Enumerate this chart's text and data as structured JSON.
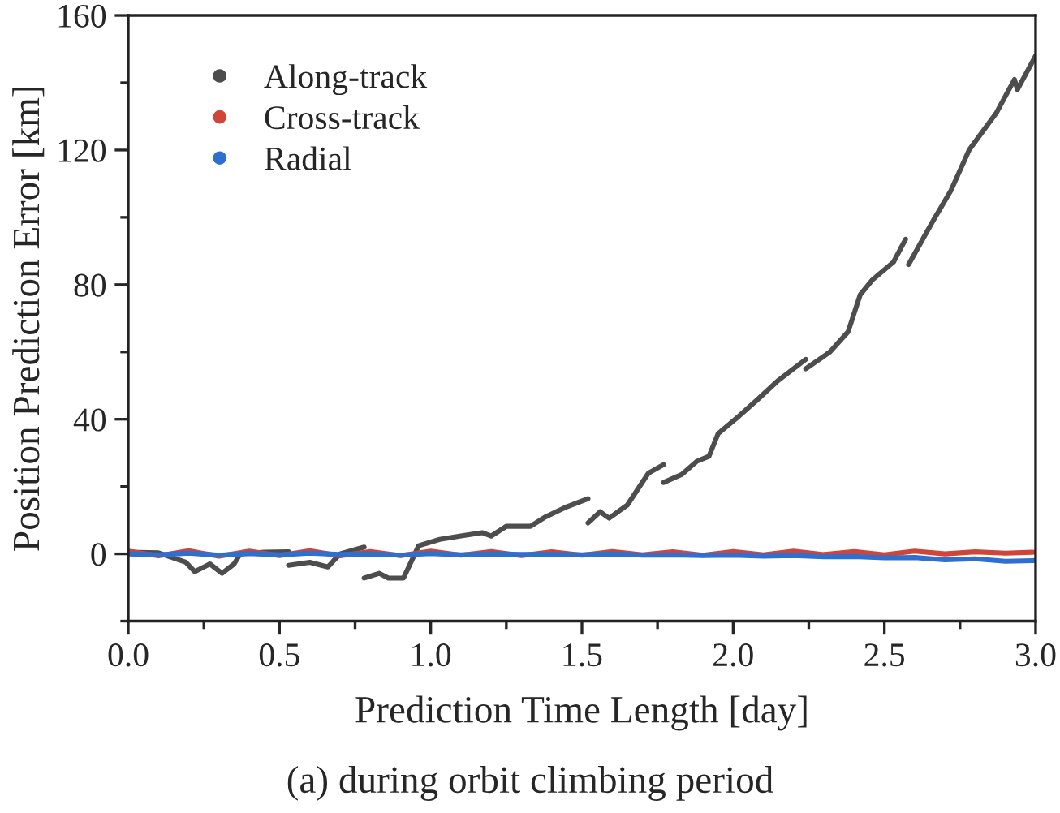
{
  "chart_data": {
    "type": "line",
    "xlabel": "Prediction Time Length [day]",
    "ylabel": "Position Prediction Error [km]",
    "annotations": [
      "(a) during orbit climbing period"
    ],
    "xlim": [
      0,
      3
    ],
    "xticks": [
      {
        "value": 0,
        "label": "0.0"
      },
      {
        "value": 0.25,
        "label": null
      },
      {
        "value": 0.5,
        "label": "0.5"
      },
      {
        "value": 0.75,
        "label": null
      },
      {
        "value": 1,
        "label": "1.0"
      },
      {
        "value": 1.25,
        "label": null
      },
      {
        "value": 1.5,
        "label": "1.5"
      },
      {
        "value": 1.75,
        "label": null
      },
      {
        "value": 2,
        "label": "2.0"
      },
      {
        "value": 2.25,
        "label": null
      },
      {
        "value": 2.5,
        "label": "2.5"
      },
      {
        "value": 2.75,
        "label": null
      },
      {
        "value": 3,
        "label": "3.0"
      }
    ],
    "ylim": [
      -20,
      160
    ],
    "yticks": [
      {
        "value": -20,
        "label": null
      },
      0,
      {
        "value": 20,
        "label": null
      },
      40,
      {
        "value": 60,
        "label": null
      },
      80,
      {
        "value": 100,
        "label": null
      },
      120,
      {
        "value": 140,
        "label": null
      },
      160
    ],
    "legend": "top left",
    "marker": "none",
    "line_style": "solid",
    "grid": false,
    "series": [
      {
        "name": "Along-track",
        "color": "#4d4d4d",
        "x": [
          0,
          0.1,
          0.19,
          0.22,
          0.27,
          0.31,
          0.35,
          0.37,
          0.45,
          0.53
        ],
        "values": [
          0.5,
          0.3,
          -2.5,
          -5.3,
          -3,
          -5.8,
          -3,
          0,
          0.5,
          0.6
        ]
      },
      {
        "color": "#4d4d4d",
        "x": [
          0.53,
          0.6,
          0.66,
          0.7,
          0.78
        ],
        "values": [
          -3.4,
          -2.5,
          -3.9,
          0,
          2
        ]
      },
      {
        "color": "#4d4d4d",
        "x": [
          0.78,
          0.83,
          0.86,
          0.91,
          0.96,
          1.03,
          1.1,
          1.17,
          1.2,
          1.25,
          1.33,
          1.38,
          1.45,
          1.52
        ],
        "values": [
          -7.2,
          -5.8,
          -7.2,
          -7.2,
          2.4,
          4.3,
          5.3,
          6.3,
          5.3,
          8.2,
          8.2,
          11,
          14,
          16.4
        ]
      },
      {
        "color": "#4d4d4d",
        "x": [
          1.52,
          1.56,
          1.59,
          1.65,
          1.72,
          1.77
        ],
        "values": [
          9.2,
          12.5,
          10.6,
          14.5,
          24,
          26.5
        ]
      },
      {
        "color": "#4d4d4d",
        "x": [
          1.77,
          1.83,
          1.88,
          1.92,
          1.95,
          2.02,
          2.08,
          2.15,
          2.24
        ],
        "values": [
          21.2,
          23.6,
          27.5,
          29,
          35.7,
          41,
          45.8,
          51.6,
          57.8
        ]
      },
      {
        "color": "#4d4d4d",
        "x": [
          2.24,
          2.32,
          2.38,
          2.42,
          2.46,
          2.53,
          2.57
        ],
        "values": [
          55,
          60,
          66,
          77,
          81.4,
          86.7,
          93.5
        ]
      },
      {
        "color": "#4d4d4d",
        "x": [
          2.58,
          2.66,
          2.72,
          2.78,
          2.87,
          2.93,
          2.94,
          3.0
        ],
        "values": [
          86,
          98.8,
          108,
          120,
          131,
          141,
          138,
          148
        ]
      },
      {
        "name": "Cross-track",
        "color": "#d0453a",
        "x": [
          0,
          0.1,
          0.2,
          0.3,
          0.4,
          0.5,
          0.6,
          0.7,
          0.8,
          0.9,
          1.0,
          1.1,
          1.2,
          1.3,
          1.4,
          1.5,
          1.6,
          1.7,
          1.8,
          1.9,
          2.0,
          2.1,
          2.2,
          2.3,
          2.4,
          2.5,
          2.6,
          2.7,
          2.8,
          2.9,
          3.0
        ],
        "values": [
          0.8,
          -0.6,
          0.9,
          -0.7,
          0.8,
          -0.5,
          0.9,
          -0.6,
          0.7,
          -0.5,
          0.8,
          -0.4,
          0.7,
          -0.5,
          0.6,
          -0.4,
          0.7,
          -0.3,
          0.6,
          -0.4,
          0.7,
          -0.3,
          0.8,
          -0.2,
          0.7,
          -0.3,
          0.8,
          0,
          0.6,
          0.2,
          0.5
        ]
      },
      {
        "name": "Radial",
        "color": "#2f6fd0",
        "x": [
          0,
          0.1,
          0.2,
          0.3,
          0.4,
          0.5,
          0.6,
          0.7,
          0.8,
          0.9,
          1.0,
          1.1,
          1.2,
          1.3,
          1.4,
          1.5,
          1.6,
          1.7,
          1.8,
          1.9,
          2.0,
          2.1,
          2.2,
          2.3,
          2.4,
          2.5,
          2.6,
          2.7,
          2.8,
          2.9,
          3.0
        ],
        "values": [
          0,
          -0.3,
          0.2,
          -0.4,
          0.1,
          -0.3,
          0.2,
          -0.2,
          0,
          -0.4,
          0.1,
          -0.3,
          0,
          -0.2,
          -0.1,
          -0.3,
          0,
          -0.4,
          -0.3,
          -0.5,
          -0.4,
          -0.7,
          -0.5,
          -0.9,
          -0.8,
          -1.2,
          -1.1,
          -1.8,
          -1.5,
          -2.2,
          -2
        ]
      }
    ]
  }
}
